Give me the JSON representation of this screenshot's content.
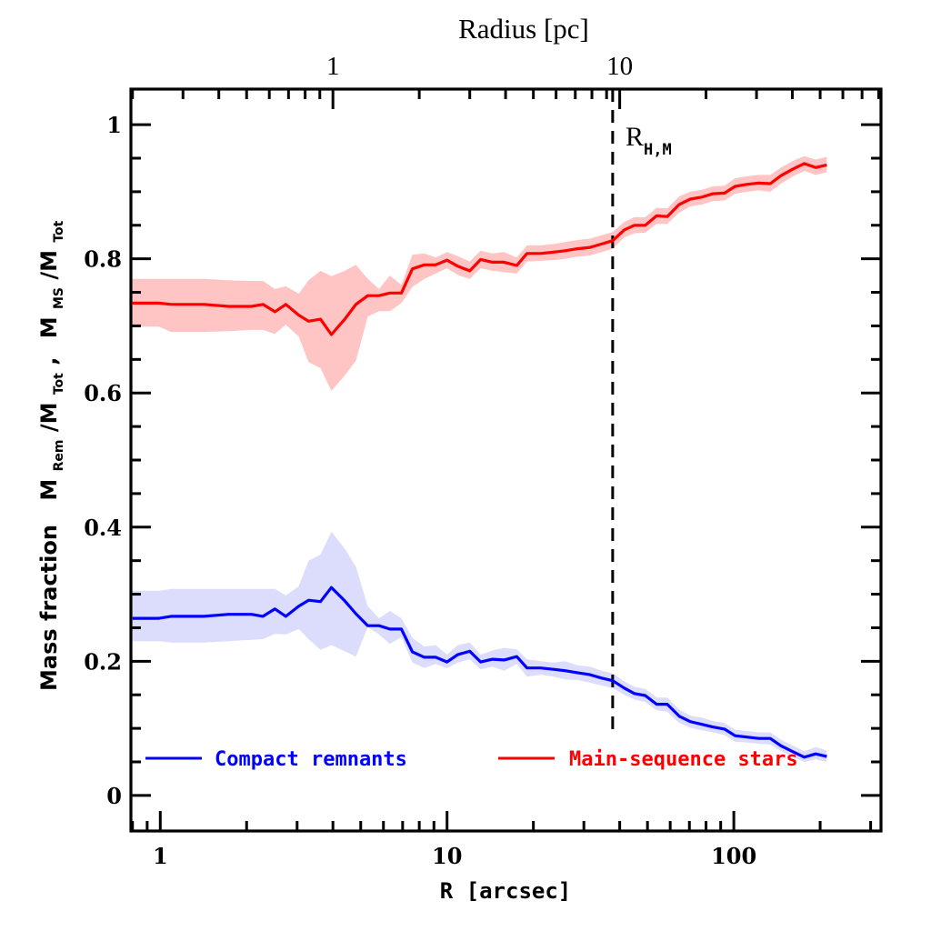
{
  "chart_data": {
    "type": "line",
    "title": "",
    "xlabel": "R [arcsec]",
    "ylabel": "Mass fraction  M_Rem/M_Tot, M_MS/M_Tot",
    "ylabel_parts": {
      "prefix": "Mass fraction",
      "m1": "M",
      "s1": "Rem",
      "slash1": "/M",
      "s2": "Tot",
      "comma": ",",
      "m2": "M",
      "s3": "MS",
      "slash2": "/M",
      "s4": "Tot"
    },
    "x_scale": "log",
    "xlim": [
      0.79,
      326
    ],
    "ylim": [
      -0.053,
      1.053
    ],
    "x_ticks": [
      1,
      10,
      100
    ],
    "x_tick_labels": [
      "1",
      "10",
      "100"
    ],
    "y_ticks": [
      0,
      0.2,
      0.4,
      0.6,
      0.8,
      1
    ],
    "y_tick_labels": [
      "0",
      "0.2",
      "0.4",
      "0.6",
      "0.8",
      "1"
    ],
    "top_axis": {
      "label": "Radius [pc]",
      "scale": "log",
      "arcsec_per_pc": 4.0,
      "ticks_pc": [
        1,
        10
      ],
      "tick_labels": [
        "1",
        "10"
      ]
    },
    "grid": false,
    "legend_position": "bottom",
    "vline": {
      "x": 37.8,
      "label_main": "R",
      "label_sub": "H,M",
      "style": "dashed",
      "color": "#000000"
    },
    "x": [
      0.8,
      0.99,
      1.09,
      1.42,
      1.73,
      2.08,
      2.28,
      2.51,
      2.74,
      3.04,
      3.29,
      3.62,
      3.95,
      4.4,
      4.81,
      5.29,
      5.79,
      6.32,
      6.93,
      7.57,
      8.33,
      9.13,
      10.0,
      10.9,
      12.0,
      13.1,
      14.4,
      15.8,
      17.5,
      19.0,
      21.2,
      23.5,
      25.8,
      28.5,
      31.5,
      34.6,
      37.8,
      41.5,
      45.0,
      49.1,
      53.8,
      58.6,
      64.5,
      70.5,
      77.4,
      84.4,
      92.8,
      101,
      111,
      122,
      134,
      146,
      161,
      176,
      193,
      211
    ],
    "series": [
      {
        "name": "Compact remnants",
        "color": "#0000ff",
        "band_color": "#dcdcfc",
        "values": [
          0.264,
          0.264,
          0.267,
          0.267,
          0.27,
          0.27,
          0.267,
          0.278,
          0.267,
          0.282,
          0.291,
          0.289,
          0.31,
          0.29,
          0.271,
          0.253,
          0.253,
          0.248,
          0.248,
          0.214,
          0.206,
          0.206,
          0.199,
          0.21,
          0.215,
          0.199,
          0.203,
          0.202,
          0.207,
          0.19,
          0.19,
          0.188,
          0.186,
          0.183,
          0.18,
          0.175,
          0.171,
          0.16,
          0.152,
          0.149,
          0.136,
          0.136,
          0.118,
          0.11,
          0.106,
          0.102,
          0.099,
          0.089,
          0.087,
          0.085,
          0.085,
          0.074,
          0.065,
          0.057,
          0.062,
          0.058
        ],
        "lower": [
          0.23,
          0.23,
          0.228,
          0.228,
          0.23,
          0.232,
          0.233,
          0.241,
          0.24,
          0.248,
          0.233,
          0.217,
          0.224,
          0.215,
          0.207,
          0.251,
          0.24,
          0.226,
          0.236,
          0.198,
          0.19,
          0.196,
          0.19,
          0.198,
          0.203,
          0.188,
          0.192,
          0.186,
          0.196,
          0.177,
          0.18,
          0.177,
          0.173,
          0.172,
          0.168,
          0.164,
          0.16,
          0.15,
          0.143,
          0.139,
          0.127,
          0.125,
          0.108,
          0.101,
          0.097,
          0.094,
          0.09,
          0.08,
          0.079,
          0.077,
          0.076,
          0.066,
          0.057,
          0.05,
          0.054,
          0.05
        ],
        "upper": [
          0.305,
          0.305,
          0.308,
          0.308,
          0.308,
          0.308,
          0.308,
          0.308,
          0.298,
          0.312,
          0.35,
          0.359,
          0.393,
          0.368,
          0.341,
          0.282,
          0.264,
          0.275,
          0.264,
          0.235,
          0.222,
          0.224,
          0.21,
          0.224,
          0.228,
          0.21,
          0.216,
          0.22,
          0.218,
          0.203,
          0.2,
          0.198,
          0.2,
          0.194,
          0.192,
          0.186,
          0.182,
          0.17,
          0.162,
          0.159,
          0.146,
          0.146,
          0.128,
          0.119,
          0.116,
          0.111,
          0.108,
          0.098,
          0.096,
          0.094,
          0.094,
          0.083,
          0.074,
          0.066,
          0.072,
          0.067
        ]
      },
      {
        "name": "Main-sequence stars",
        "color": "#ff0000",
        "band_color": "#ffc4c4",
        "values": [
          0.734,
          0.734,
          0.732,
          0.732,
          0.729,
          0.729,
          0.732,
          0.721,
          0.732,
          0.716,
          0.707,
          0.71,
          0.687,
          0.71,
          0.732,
          0.745,
          0.745,
          0.749,
          0.749,
          0.785,
          0.791,
          0.791,
          0.798,
          0.789,
          0.782,
          0.799,
          0.795,
          0.795,
          0.79,
          0.808,
          0.808,
          0.81,
          0.812,
          0.815,
          0.817,
          0.822,
          0.827,
          0.843,
          0.85,
          0.85,
          0.864,
          0.863,
          0.881,
          0.889,
          0.892,
          0.897,
          0.898,
          0.908,
          0.911,
          0.913,
          0.912,
          0.924,
          0.934,
          0.942,
          0.936,
          0.94
        ],
        "lower": [
          0.699,
          0.699,
          0.691,
          0.691,
          0.692,
          0.694,
          0.694,
          0.688,
          0.702,
          0.684,
          0.646,
          0.637,
          0.603,
          0.626,
          0.648,
          0.714,
          0.722,
          0.722,
          0.734,
          0.758,
          0.77,
          0.778,
          0.786,
          0.776,
          0.77,
          0.786,
          0.782,
          0.78,
          0.778,
          0.796,
          0.797,
          0.798,
          0.8,
          0.803,
          0.805,
          0.81,
          0.815,
          0.832,
          0.838,
          0.839,
          0.852,
          0.852,
          0.869,
          0.878,
          0.881,
          0.886,
          0.887,
          0.897,
          0.9,
          0.902,
          0.9,
          0.912,
          0.923,
          0.931,
          0.925,
          0.929
        ],
        "upper": [
          0.77,
          0.77,
          0.77,
          0.77,
          0.768,
          0.767,
          0.767,
          0.755,
          0.759,
          0.748,
          0.768,
          0.782,
          0.774,
          0.782,
          0.791,
          0.77,
          0.755,
          0.775,
          0.761,
          0.806,
          0.808,
          0.802,
          0.81,
          0.804,
          0.796,
          0.812,
          0.808,
          0.81,
          0.802,
          0.82,
          0.82,
          0.822,
          0.825,
          0.828,
          0.83,
          0.835,
          0.84,
          0.855,
          0.862,
          0.862,
          0.876,
          0.875,
          0.893,
          0.9,
          0.903,
          0.908,
          0.909,
          0.92,
          0.923,
          0.925,
          0.925,
          0.936,
          0.946,
          0.953,
          0.948,
          0.952
        ]
      }
    ],
    "legend": [
      {
        "label": "Compact remnants",
        "color": "#0000ff"
      },
      {
        "label": "Main-sequence stars",
        "color": "#ff0000"
      }
    ]
  }
}
